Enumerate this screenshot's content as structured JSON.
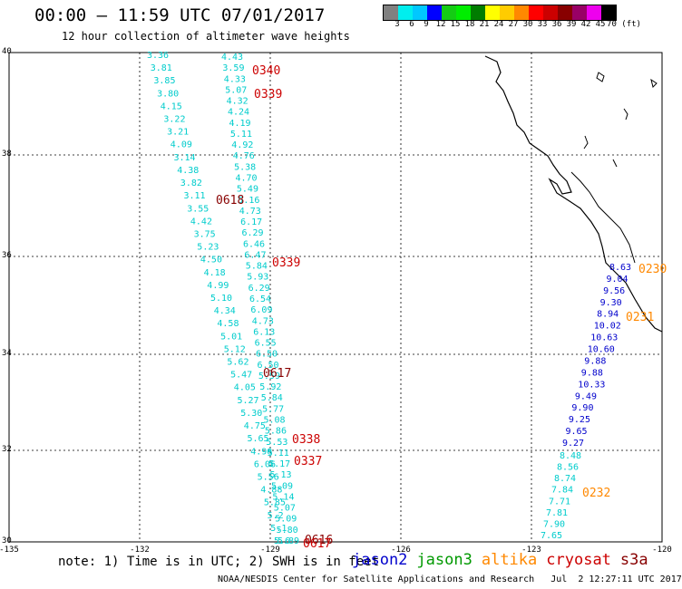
{
  "title": "00:00 – 11:59 UTC 07/01/2017",
  "subtitle": "12 hour collection of altimeter wave heights",
  "colorbar": {
    "colors": [
      "#808080",
      "#00eeee",
      "#00c8ff",
      "#0000ff",
      "#14cc14",
      "#00ee00",
      "#007d00",
      "#ffff00",
      "#ffcc00",
      "#ff8800",
      "#ff0000",
      "#cc0000",
      "#880000",
      "#990066",
      "#ee00ee",
      "#000000"
    ],
    "labels": [
      "3",
      "6",
      "9",
      "12",
      "15",
      "18",
      "21",
      "24",
      "27",
      "30",
      "33",
      "36",
      "39",
      "42",
      "45",
      "70 (ft)"
    ]
  },
  "axes": {
    "x_ticks": [
      "-135",
      "-132",
      "-129",
      "-126",
      "-123",
      "-120"
    ],
    "y_ticks": [
      "40",
      "38",
      "36",
      "34",
      "32",
      "30"
    ]
  },
  "colors": {
    "jason2": "#0000cc",
    "jason3": "#009900",
    "altika": "#ff8800",
    "cryosat": "#cc0000",
    "s3a": "#880000",
    "swh_low": "#00cccc"
  },
  "tracks": [
    {
      "name": "track-a",
      "color": "#00cccc",
      "values": [
        "3.36",
        "3.81",
        "3.85",
        "3.80",
        "4.15",
        "3.22",
        "3.21",
        "4.09",
        "3.14",
        "4.38",
        "3.82",
        "3.11",
        "3.55",
        "4.42",
        "3.75",
        "5.23",
        "4.50",
        "4.18",
        "4.99",
        "5.10",
        "4.34",
        "4.58",
        "5.01",
        "5.12",
        "5.62",
        "5.47",
        "4.05",
        "5.27",
        "5.30",
        "4.75",
        "5.65",
        "4.96",
        "6.06",
        "5.56",
        "4.88",
        "5.85",
        "5.2",
        "5.1",
        "5.6"
      ]
    },
    {
      "name": "track-b",
      "color": "#00cccc",
      "values": [
        "4.43",
        "3.59",
        "4.33",
        "5.07",
        "4.32",
        "4.24",
        "4.19",
        "5.11",
        "4.92",
        "4.76",
        "5.38",
        "4.70",
        "5.49",
        "5.16",
        "4.73",
        "6.17",
        "6.29",
        "6.46",
        "6.47",
        "5.84",
        "5.93",
        "6.29",
        "6.54",
        "6.09",
        "4.73",
        "6.13",
        "6.55",
        "6.50",
        "6.50",
        "5.59",
        "5.92",
        "5.84",
        "5.77",
        "5.08",
        "5.86",
        "5.53",
        "5.11",
        "5.17",
        "5.13",
        "5.09",
        "5.14",
        "5.07",
        "5.09",
        "5.80",
        "5.89"
      ]
    },
    {
      "name": "track-jason2",
      "color": "#0000cc",
      "values": [
        "8.63",
        "9.04",
        "9.56",
        "9.30",
        "8.94",
        "10.02",
        "10.63",
        "10.60",
        "9.88",
        "9.88",
        "10.33",
        "9.49",
        "9.90",
        "9.25",
        "9.65",
        "9.27"
      ]
    },
    {
      "name": "track-jason3-tail",
      "color": "#00cccc",
      "values": [
        "8.48",
        "8.56",
        "8.74",
        "7.84",
        "7.71",
        "7.81",
        "7.90",
        "7.65"
      ]
    }
  ],
  "time_labels": [
    {
      "text": "0340",
      "color": "#cc0000"
    },
    {
      "text": "0339",
      "color": "#cc0000"
    },
    {
      "text": "0618",
      "color": "#880000"
    },
    {
      "text": "0339",
      "color": "#cc0000"
    },
    {
      "text": "0617",
      "color": "#880000"
    },
    {
      "text": "0338",
      "color": "#cc0000"
    },
    {
      "text": "0337",
      "color": "#cc0000"
    },
    {
      "text": "0616",
      "color": "#880000"
    },
    {
      "text": "0617",
      "color": "#cc0000"
    },
    {
      "text": "0230",
      "color": "#ff8800"
    },
    {
      "text": "0231",
      "color": "#ff8800"
    },
    {
      "text": "0232",
      "color": "#ff8800"
    }
  ],
  "note": "note: 1) Time is in UTC; 2) SWH is in feet",
  "legend": [
    {
      "label": "jason2",
      "color": "#0000cc"
    },
    {
      "label": "jason3",
      "color": "#009900"
    },
    {
      "label": "altika",
      "color": "#ff8800"
    },
    {
      "label": "cryosat",
      "color": "#cc0000"
    },
    {
      "label": "s3a",
      "color": "#880000"
    }
  ],
  "footer": "NOAA/NESDIS Center for Satellite Applications and Research   Jul  2 12:27:11 UTC 2017"
}
